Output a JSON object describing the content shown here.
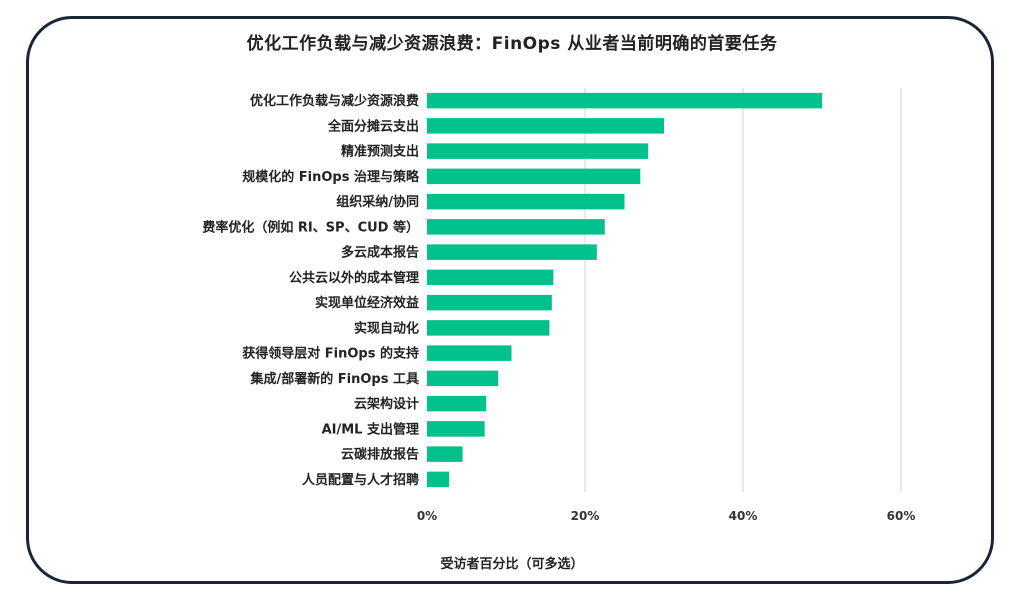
{
  "chart_data": {
    "type": "bar",
    "orientation": "horizontal",
    "title": "优化工作负载与减少资源浪费：FinOps 从业者当前明确的首要任务",
    "xlabel": "受访者百分比（可多选）",
    "ylabel": "",
    "categories": [
      "优化工作负载与减少资源浪费",
      "全面分摊云支出",
      "精准预测支出",
      "规模化的 FinOps 治理与策略",
      "组织采纳/协同",
      "费率优化（例如 RI、SP、CUD 等）",
      "多云成本报告",
      "公共云以外的成本管理",
      "实现单位经济效益",
      "实现自动化",
      "获得领导层对 FinOps 的支持",
      "集成/部署新的 FinOps 工具",
      "云架构设计",
      "AI/ML 支出管理",
      "云碳排放报告",
      "人员配置与人才招聘"
    ],
    "values": [
      50.0,
      30.0,
      28.0,
      27.0,
      25.0,
      22.5,
      21.5,
      16.0,
      15.8,
      15.5,
      10.7,
      9.0,
      7.5,
      7.3,
      4.5,
      2.8
    ],
    "xlim": [
      0,
      60
    ],
    "xticks": [
      0,
      20,
      40,
      60
    ],
    "xtick_labels": [
      "0%",
      "20%",
      "40%",
      "60%"
    ],
    "bar_color": "#00c08b",
    "grid": "vertical",
    "legend": "none"
  }
}
